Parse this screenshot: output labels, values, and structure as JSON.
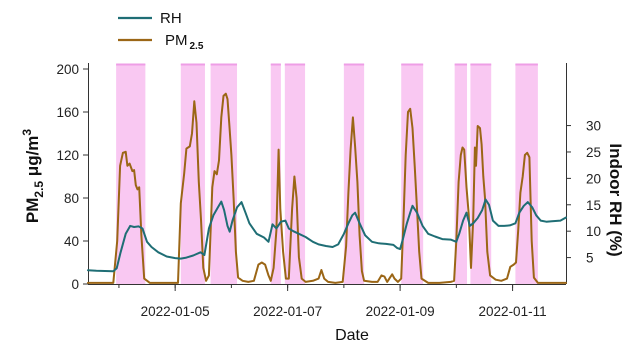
{
  "chart_data": {
    "type": "line",
    "xlabel": "Date",
    "x_tick_labels": [
      "2022-01-05",
      "2022-01-07",
      "2022-01-09",
      "2022-01-11"
    ],
    "x_tick_days": [
      5,
      7,
      9,
      11
    ],
    "xlim": [
      3.45,
      11.95
    ],
    "ylabel_left": {
      "main": "PM",
      "sub": "2.5",
      "unit": " μg/m",
      "sup": "3"
    },
    "ylim_left": [
      0,
      200
    ],
    "yticks_left": [
      0,
      40,
      80,
      120,
      160,
      200
    ],
    "ylabel_right": "Indoor RH (%)",
    "ylim_right": [
      0,
      32
    ],
    "yticks_right": [
      5,
      10,
      15,
      20,
      25,
      30
    ],
    "legend": [
      {
        "name": "RH",
        "color": "#1f6e75"
      },
      {
        "name": "PM",
        "sub": "2.5",
        "color": "#9b6616"
      }
    ],
    "shaded_intervals": [
      [
        3.95,
        4.47
      ],
      [
        5.1,
        5.53
      ],
      [
        5.63,
        6.1
      ],
      [
        6.7,
        6.88
      ],
      [
        6.95,
        7.31
      ],
      [
        8.0,
        8.36
      ],
      [
        9.02,
        9.41
      ],
      [
        9.97,
        10.19
      ],
      [
        10.25,
        10.62
      ],
      [
        11.05,
        11.45
      ]
    ],
    "shading_color": "#f9c8f2",
    "shading_edge_color": "#ee9ee6",
    "series": [
      {
        "name": "RH",
        "color": "#1f6e75",
        "axis": "right",
        "points": [
          [
            3.45,
            2.6
          ],
          [
            3.6,
            2.5
          ],
          [
            3.9,
            2.4
          ],
          [
            3.96,
            3.0
          ],
          [
            4.03,
            6.0
          ],
          [
            4.12,
            9.5
          ],
          [
            4.2,
            11.0
          ],
          [
            4.27,
            10.8
          ],
          [
            4.35,
            10.9
          ],
          [
            4.42,
            10.5
          ],
          [
            4.5,
            8.0
          ],
          [
            4.58,
            7.0
          ],
          [
            4.7,
            6.0
          ],
          [
            4.85,
            5.2
          ],
          [
            5.0,
            4.9
          ],
          [
            5.1,
            4.8
          ],
          [
            5.2,
            5.0
          ],
          [
            5.32,
            5.4
          ],
          [
            5.45,
            6.0
          ],
          [
            5.52,
            5.5
          ],
          [
            5.6,
            10.5
          ],
          [
            5.68,
            13.0
          ],
          [
            5.76,
            14.5
          ],
          [
            5.82,
            15.6
          ],
          [
            5.87,
            14.0
          ],
          [
            5.93,
            11.0
          ],
          [
            5.97,
            9.9
          ],
          [
            6.02,
            12.0
          ],
          [
            6.1,
            14.5
          ],
          [
            6.18,
            15.5
          ],
          [
            6.25,
            13.5
          ],
          [
            6.32,
            11.5
          ],
          [
            6.45,
            9.5
          ],
          [
            6.58,
            8.8
          ],
          [
            6.66,
            8.0
          ],
          [
            6.73,
            11.3
          ],
          [
            6.8,
            10.5
          ],
          [
            6.88,
            11.8
          ],
          [
            6.96,
            12.0
          ],
          [
            7.02,
            10.5
          ],
          [
            7.1,
            10.0
          ],
          [
            7.2,
            9.5
          ],
          [
            7.32,
            8.9
          ],
          [
            7.45,
            8.0
          ],
          [
            7.55,
            7.5
          ],
          [
            7.68,
            7.2
          ],
          [
            7.8,
            7.0
          ],
          [
            7.9,
            7.5
          ],
          [
            8.0,
            9.5
          ],
          [
            8.08,
            11.5
          ],
          [
            8.15,
            13.0
          ],
          [
            8.2,
            13.5
          ],
          [
            8.28,
            11.5
          ],
          [
            8.38,
            9.2
          ],
          [
            8.5,
            8.0
          ],
          [
            8.62,
            7.7
          ],
          [
            8.75,
            7.6
          ],
          [
            8.88,
            7.4
          ],
          [
            8.95,
            6.8
          ],
          [
            9.0,
            6.6
          ],
          [
            9.05,
            8.5
          ],
          [
            9.12,
            11.5
          ],
          [
            9.18,
            13.5
          ],
          [
            9.22,
            14.8
          ],
          [
            9.3,
            13.5
          ],
          [
            9.4,
            11.0
          ],
          [
            9.5,
            9.5
          ],
          [
            9.62,
            9.0
          ],
          [
            9.75,
            8.5
          ],
          [
            9.9,
            8.4
          ],
          [
            10.0,
            8.0
          ],
          [
            10.05,
            9.5
          ],
          [
            10.12,
            12.0
          ],
          [
            10.18,
            13.5
          ],
          [
            10.24,
            11.0
          ],
          [
            10.3,
            11.5
          ],
          [
            10.38,
            12.5
          ],
          [
            10.46,
            14.0
          ],
          [
            10.52,
            16.0
          ],
          [
            10.58,
            15.0
          ],
          [
            10.65,
            12.0
          ],
          [
            10.75,
            11.0
          ],
          [
            10.85,
            11.0
          ],
          [
            10.95,
            11.1
          ],
          [
            11.05,
            11.5
          ],
          [
            11.12,
            13.5
          ],
          [
            11.2,
            14.8
          ],
          [
            11.27,
            15.5
          ],
          [
            11.35,
            14.5
          ],
          [
            11.42,
            13.0
          ],
          [
            11.5,
            12.0
          ],
          [
            11.6,
            11.8
          ],
          [
            11.7,
            11.9
          ],
          [
            11.85,
            12.0
          ],
          [
            11.95,
            12.6
          ]
        ]
      },
      {
        "name": "PM",
        "name_sub": "2.5",
        "color": "#9b6616",
        "axis": "left",
        "points": [
          [
            3.45,
            1
          ],
          [
            3.7,
            1
          ],
          [
            3.9,
            1
          ],
          [
            3.97,
            40
          ],
          [
            4.02,
            110
          ],
          [
            4.07,
            122
          ],
          [
            4.12,
            123
          ],
          [
            4.15,
            110
          ],
          [
            4.19,
            112
          ],
          [
            4.24,
            105
          ],
          [
            4.27,
            106
          ],
          [
            4.3,
            92
          ],
          [
            4.33,
            88
          ],
          [
            4.36,
            90
          ],
          [
            4.4,
            45
          ],
          [
            4.45,
            5
          ],
          [
            4.55,
            1
          ],
          [
            4.8,
            1
          ],
          [
            5.05,
            1
          ],
          [
            5.1,
            75
          ],
          [
            5.16,
            103
          ],
          [
            5.2,
            126
          ],
          [
            5.26,
            128
          ],
          [
            5.3,
            140
          ],
          [
            5.34,
            170
          ],
          [
            5.38,
            150
          ],
          [
            5.42,
            95
          ],
          [
            5.46,
            60
          ],
          [
            5.5,
            15
          ],
          [
            5.55,
            3
          ],
          [
            5.6,
            8
          ],
          [
            5.66,
            90
          ],
          [
            5.7,
            105
          ],
          [
            5.74,
            102
          ],
          [
            5.78,
            115
          ],
          [
            5.82,
            155
          ],
          [
            5.86,
            175
          ],
          [
            5.9,
            177
          ],
          [
            5.93,
            172
          ],
          [
            5.96,
            150
          ],
          [
            6.0,
            120
          ],
          [
            6.04,
            80
          ],
          [
            6.08,
            30
          ],
          [
            6.12,
            6
          ],
          [
            6.2,
            3
          ],
          [
            6.3,
            2
          ],
          [
            6.4,
            3
          ],
          [
            6.48,
            18
          ],
          [
            6.54,
            20
          ],
          [
            6.6,
            18
          ],
          [
            6.66,
            8
          ],
          [
            6.7,
            3
          ],
          [
            6.75,
            15
          ],
          [
            6.8,
            50
          ],
          [
            6.84,
            125
          ],
          [
            6.87,
            70
          ],
          [
            6.92,
            30
          ],
          [
            6.97,
            5
          ],
          [
            7.02,
            5
          ],
          [
            7.08,
            70
          ],
          [
            7.12,
            100
          ],
          [
            7.16,
            80
          ],
          [
            7.2,
            25
          ],
          [
            7.25,
            5
          ],
          [
            7.32,
            2
          ],
          [
            7.45,
            3
          ],
          [
            7.55,
            5
          ],
          [
            7.6,
            13
          ],
          [
            7.65,
            5
          ],
          [
            7.72,
            2
          ],
          [
            7.85,
            1
          ],
          [
            7.98,
            2
          ],
          [
            8.04,
            35
          ],
          [
            8.08,
            85
          ],
          [
            8.12,
            125
          ],
          [
            8.16,
            155
          ],
          [
            8.2,
            128
          ],
          [
            8.24,
            95
          ],
          [
            8.28,
            45
          ],
          [
            8.32,
            12
          ],
          [
            8.36,
            3
          ],
          [
            8.5,
            2
          ],
          [
            8.6,
            2
          ],
          [
            8.67,
            8
          ],
          [
            8.72,
            7
          ],
          [
            8.77,
            2
          ],
          [
            8.82,
            6
          ],
          [
            8.86,
            9
          ],
          [
            8.9,
            5
          ],
          [
            8.96,
            2
          ],
          [
            9.02,
            5
          ],
          [
            9.06,
            60
          ],
          [
            9.1,
            120
          ],
          [
            9.14,
            160
          ],
          [
            9.18,
            163
          ],
          [
            9.22,
            145
          ],
          [
            9.26,
            110
          ],
          [
            9.3,
            70
          ],
          [
            9.34,
            30
          ],
          [
            9.38,
            5
          ],
          [
            9.5,
            1
          ],
          [
            9.7,
            1
          ],
          [
            9.9,
            2
          ],
          [
            9.96,
            3
          ],
          [
            10.0,
            40
          ],
          [
            10.04,
            95
          ],
          [
            10.08,
            120
          ],
          [
            10.11,
            127
          ],
          [
            10.14,
            125
          ],
          [
            10.18,
            90
          ],
          [
            10.22,
            65
          ],
          [
            10.26,
            15
          ],
          [
            10.3,
            60
          ],
          [
            10.33,
            127
          ],
          [
            10.35,
            110
          ],
          [
            10.38,
            147
          ],
          [
            10.42,
            145
          ],
          [
            10.45,
            130
          ],
          [
            10.48,
            100
          ],
          [
            10.51,
            80
          ],
          [
            10.55,
            30
          ],
          [
            10.6,
            8
          ],
          [
            10.7,
            4
          ],
          [
            10.8,
            3
          ],
          [
            10.9,
            5
          ],
          [
            10.96,
            16
          ],
          [
            11.02,
            18
          ],
          [
            11.06,
            20
          ],
          [
            11.1,
            50
          ],
          [
            11.14,
            85
          ],
          [
            11.18,
            100
          ],
          [
            11.22,
            120
          ],
          [
            11.26,
            122
          ],
          [
            11.3,
            118
          ],
          [
            11.34,
            40
          ],
          [
            11.38,
            6
          ],
          [
            11.45,
            1
          ],
          [
            11.6,
            1
          ],
          [
            11.95,
            1
          ]
        ]
      }
    ]
  }
}
